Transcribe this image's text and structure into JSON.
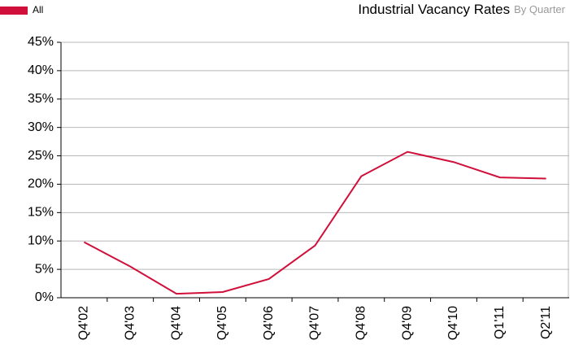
{
  "chart_data": {
    "type": "line",
    "title": "Industrial Vacancy Rates",
    "subtitle": "By Quarter",
    "categories": [
      "Q4'02",
      "Q4'03",
      "Q4'04",
      "Q4'05",
      "Q4'06",
      "Q4'07",
      "Q4'08",
      "Q4'09",
      "Q4'10",
      "Q1'11",
      "Q2'11"
    ],
    "series": [
      {
        "name": "All",
        "color": "#d0103a",
        "values": [
          9.8,
          5.5,
          0.7,
          1.0,
          3.3,
          9.2,
          21.4,
          25.7,
          23.9,
          21.2,
          21.0
        ]
      }
    ],
    "ylim": [
      0,
      45
    ],
    "yticks": [
      {
        "value": 0,
        "label": "0%"
      },
      {
        "value": 5,
        "label": "5%"
      },
      {
        "value": 10,
        "label": "10%"
      },
      {
        "value": 15,
        "label": "15%"
      },
      {
        "value": 20,
        "label": "20%"
      },
      {
        "value": 25,
        "label": "25%"
      },
      {
        "value": 30,
        "label": "30%"
      },
      {
        "value": 35,
        "label": "35%"
      },
      {
        "value": 40,
        "label": "40%"
      },
      {
        "value": 45,
        "label": "45%"
      }
    ],
    "grid": true,
    "legend": "top-left"
  }
}
